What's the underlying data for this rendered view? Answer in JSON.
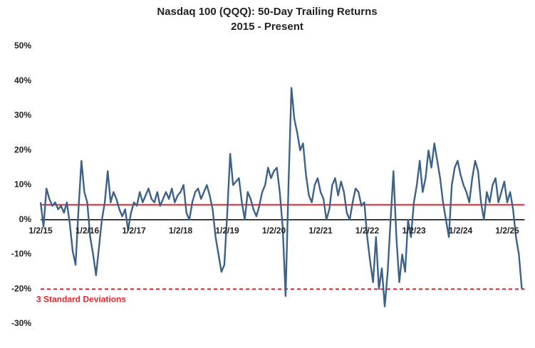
{
  "chart_data": {
    "type": "line",
    "title": "Nasdaq 100 (QQQ): 50-Day Trailing Returns",
    "subtitle": "2015 - Present",
    "categories": [
      "1/2/15",
      null,
      null,
      null,
      null,
      null,
      null,
      null,
      null,
      null,
      null,
      null,
      null,
      null,
      null,
      null,
      "1/2/16",
      null,
      null,
      null,
      null,
      null,
      null,
      null,
      null,
      null,
      null,
      null,
      null,
      null,
      null,
      null,
      "1/2/17",
      null,
      null,
      null,
      null,
      null,
      null,
      null,
      null,
      null,
      null,
      null,
      null,
      null,
      null,
      null,
      "1/2/18",
      null,
      null,
      null,
      null,
      null,
      null,
      null,
      null,
      null,
      null,
      null,
      null,
      null,
      null,
      null,
      "1/2/19",
      null,
      null,
      null,
      null,
      null,
      null,
      null,
      null,
      null,
      null,
      null,
      null,
      null,
      null,
      null,
      "1/2/20",
      null,
      null,
      null,
      null,
      null,
      null,
      null,
      null,
      null,
      null,
      null,
      null,
      null,
      null,
      null,
      "1/2/21",
      null,
      null,
      null,
      null,
      null,
      null,
      null,
      null,
      null,
      null,
      null,
      null,
      null,
      null,
      null,
      "1/2/22",
      null,
      null,
      null,
      null,
      null,
      null,
      null,
      null,
      null,
      null,
      null,
      null,
      null,
      null,
      null,
      "1/2/23",
      null,
      null,
      null,
      null,
      null,
      null,
      null,
      null,
      null,
      null,
      null,
      null,
      null,
      null,
      null,
      "1/2/24",
      null,
      null,
      null,
      null,
      null,
      null,
      null,
      null,
      null,
      null,
      null,
      null,
      null,
      null,
      null,
      "1/2/25",
      null,
      null,
      null,
      null,
      null
    ],
    "series": [
      {
        "color": "#3e6285",
        "values": [
          5,
          -2,
          9,
          6,
          4,
          5,
          3,
          4,
          2,
          5,
          -1,
          -9,
          -13,
          3,
          17,
          8,
          5,
          -5,
          -10,
          -16,
          -8,
          0,
          5,
          14,
          5,
          8,
          6,
          3,
          1,
          3,
          -3,
          2,
          5,
          4,
          8,
          5,
          7,
          9,
          6,
          5,
          8,
          4,
          6,
          8,
          6,
          9,
          5,
          7,
          8,
          10,
          2,
          0,
          5,
          8,
          9,
          6,
          8,
          10,
          7,
          3,
          -5,
          -10,
          -15,
          -13,
          2,
          19,
          10,
          11,
          12,
          5,
          0,
          8,
          6,
          3,
          1,
          4,
          8,
          10,
          15,
          12,
          14,
          15,
          8,
          -2,
          -22,
          10,
          38,
          29,
          25,
          20,
          22,
          13,
          7,
          5,
          10,
          12,
          8,
          6,
          0,
          3,
          10,
          12,
          7,
          11,
          8,
          2,
          0,
          5,
          9,
          8,
          4,
          5,
          -5,
          -12,
          -18,
          -5,
          -20,
          -14,
          -25,
          -15,
          0,
          14,
          -5,
          -18,
          -10,
          -15,
          0,
          -5,
          5,
          10,
          17,
          8,
          12,
          20,
          15,
          22,
          17,
          12,
          5,
          0,
          -5,
          10,
          15,
          17,
          13,
          10,
          8,
          5,
          12,
          17,
          14,
          5,
          0,
          8,
          5,
          10,
          12,
          5,
          8,
          11,
          5,
          8,
          3,
          -5,
          -10,
          -20
        ]
      }
    ],
    "ylim": [
      -30,
      50
    ],
    "yticks": [
      {
        "value": -30,
        "label": "-30%"
      },
      {
        "value": -20,
        "label": "-20%"
      },
      {
        "value": -10,
        "label": "-10%"
      },
      {
        "value": 0,
        "label": "0%"
      },
      {
        "value": 10,
        "label": "10%"
      },
      {
        "value": 20,
        "label": "20%"
      },
      {
        "value": 30,
        "label": "30%"
      },
      {
        "value": 40,
        "label": "40%"
      },
      {
        "value": 50,
        "label": "50%"
      }
    ],
    "reference_lines": [
      {
        "value": 4.3,
        "color": "#e3262b",
        "style": "solid"
      },
      {
        "value": -20,
        "color": "#e3262b",
        "style": "dashed",
        "label": "3 Standard Deviations"
      }
    ]
  }
}
